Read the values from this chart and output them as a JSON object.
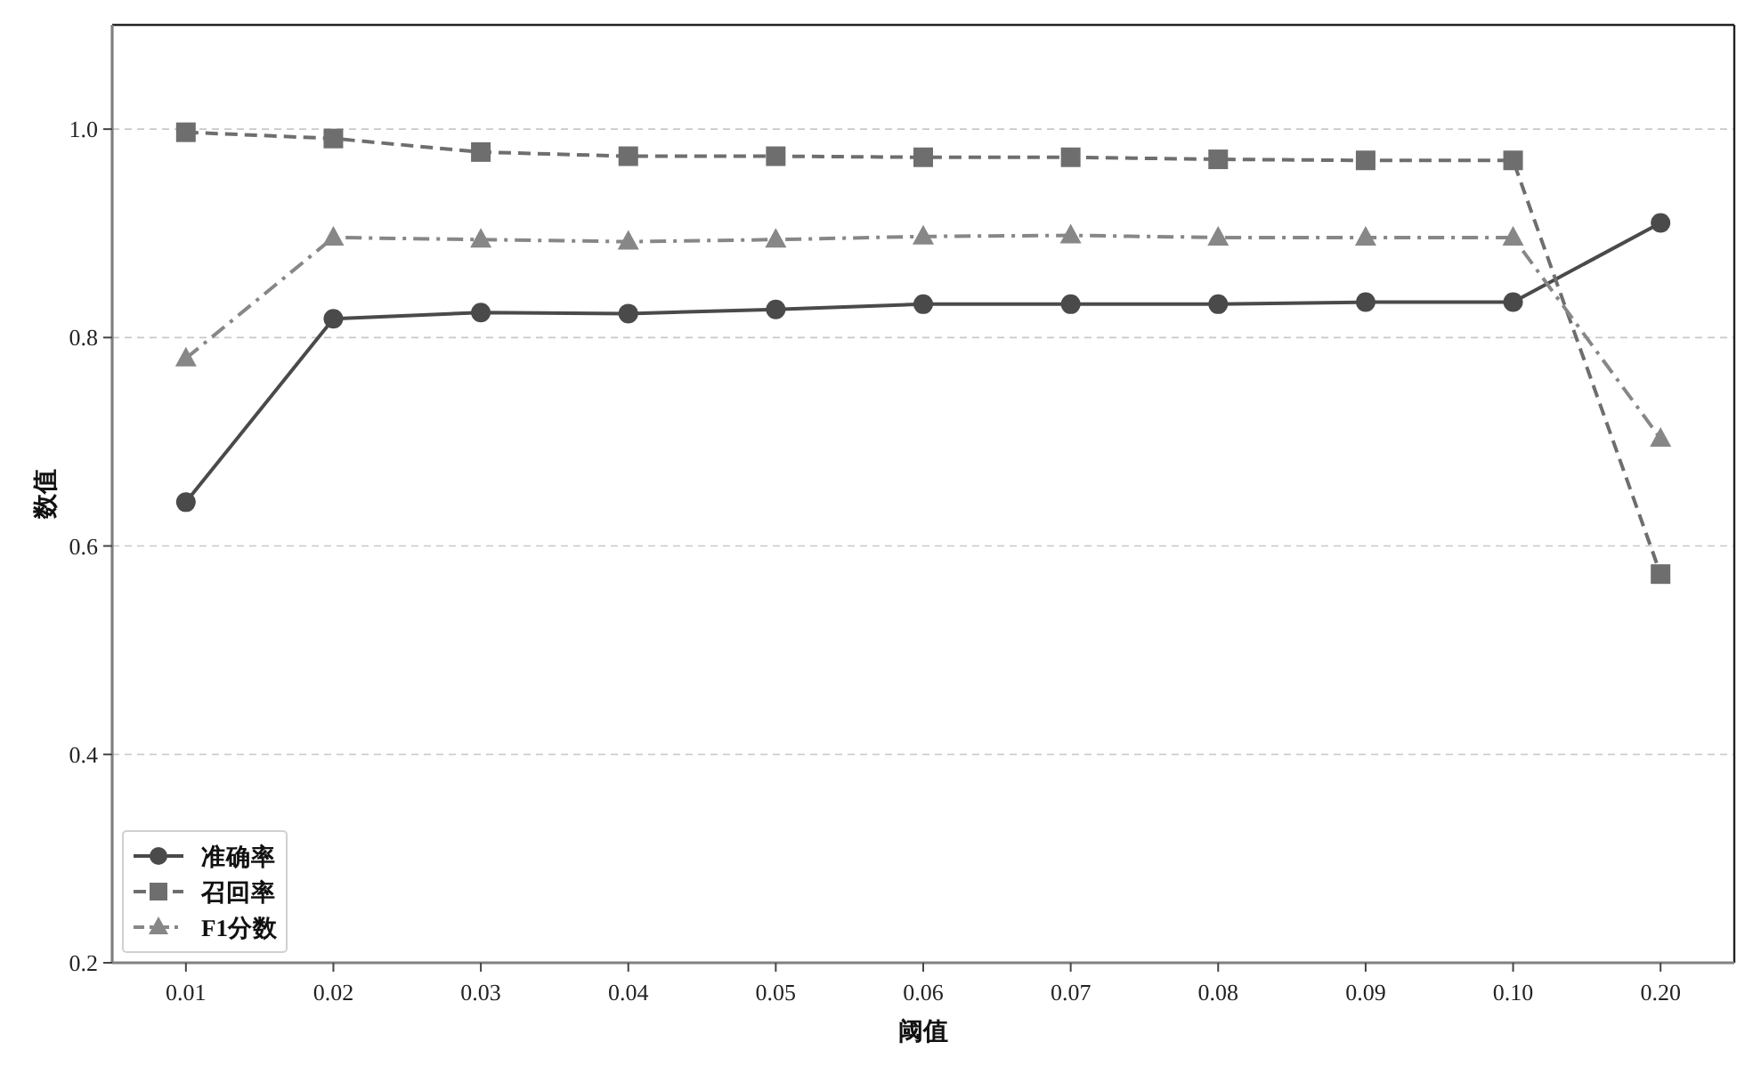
{
  "chart_data": {
    "type": "line",
    "xlabel": "阈值",
    "ylabel": "数值",
    "categories": [
      "0.01",
      "0.02",
      "0.03",
      "0.04",
      "0.05",
      "0.06",
      "0.07",
      "0.08",
      "0.09",
      "0.10",
      "0.20"
    ],
    "series": [
      {
        "name": "准确率",
        "color": "#4a4a4a",
        "marker": "circle",
        "line_style": "solid",
        "values": [
          0.642,
          0.818,
          0.824,
          0.823,
          0.827,
          0.832,
          0.832,
          0.832,
          0.834,
          0.834,
          0.91
        ]
      },
      {
        "name": "召回率",
        "color": "#6e6e6e",
        "marker": "square",
        "line_style": "dashed",
        "values": [
          0.997,
          0.991,
          0.978,
          0.974,
          0.974,
          0.973,
          0.973,
          0.971,
          0.97,
          0.97,
          0.573
        ]
      },
      {
        "name": "F1分数",
        "color": "#878787",
        "marker": "triangle",
        "line_style": "dashdot",
        "values": [
          0.78,
          0.896,
          0.894,
          0.892,
          0.894,
          0.897,
          0.898,
          0.896,
          0.896,
          0.896,
          0.703
        ]
      }
    ],
    "ylim": [
      0.2,
      1.1
    ],
    "yticks": [
      0.2,
      0.4,
      0.6,
      0.8,
      {
        "value": 1.0,
        "label": "1.0"
      }
    ],
    "grid": "y",
    "legend": "bottom left"
  }
}
